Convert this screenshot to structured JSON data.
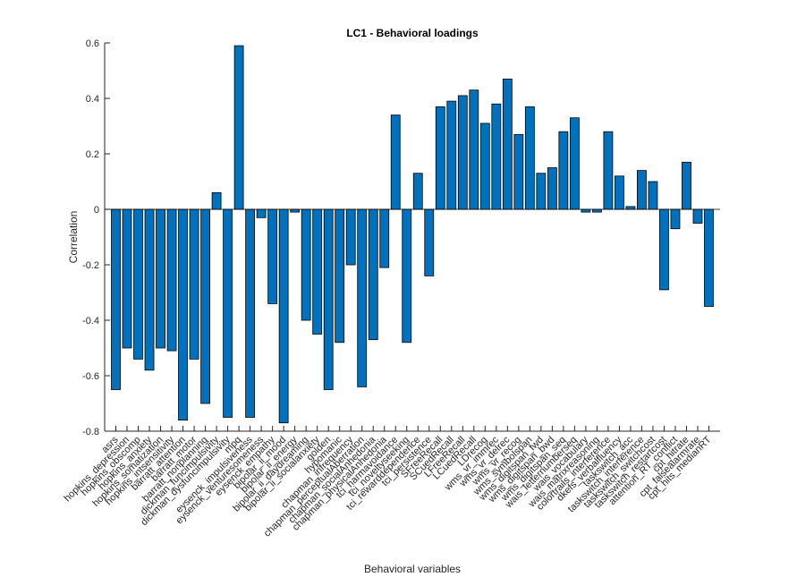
{
  "chart_data": {
    "type": "bar",
    "title": "LC1 - Behavioral loadings",
    "x_label": "Behavioral variables",
    "y_label": "Correlation",
    "categories": [
      "asrs",
      "hopkins_depression",
      "hopkins_obscomp",
      "hopkins_anxiety",
      "hopkins_somatization",
      "hopkins_intsensitivity",
      "barratt_attention",
      "barratt_motor",
      "barratt_nonplanning",
      "dickman_funcimpulsivity",
      "dickman_dysfuncimpulsivity",
      "mpq",
      "eysenck_impulsiveness",
      "eysenck_venturesomeness",
      "eysenck_empathy",
      "bipolar_ii_mood",
      "bipolar_ii_energy",
      "bipolar_ii_daydreaming",
      "bipolar_ii_socialanxiety",
      "golden",
      "hypomanic",
      "chapman_infrequency",
      "chapman_perceptualAberration",
      "chapman_socialAnhedonia",
      "chapman_physicalAnhedonia",
      "tci_harmavoidance",
      "tci_noveltyseeking",
      "tci_rewarddependence",
      "tci_persistence",
      "SFreeRecall",
      "SCuedRecall",
      "LFreeRecall",
      "LCuedRecall",
      "LDrecog",
      "wms_vr_immrec",
      "wms_vr_delrec",
      "wms_vr_recog",
      "wms_symbolspan",
      "wms_digitspan_fwd",
      "wms_digitspan_bwd",
      "wms_digitspan_seq",
      "wais_letternumberseq",
      "wais_vocabulary",
      "wais_matrixreasoning",
      "colortrails_interference",
      "dkefs_verbalfluency",
      "taskswitch_acc",
      "taskswitch_interference",
      "taskswitch_switchcost",
      "taskswitch_restartcost",
      "attention_RT_conflict",
      "cpt_hitrate",
      "cpt_falsealarmrate",
      "cpt_hits_medianRT"
    ],
    "values": [
      -0.65,
      -0.5,
      -0.54,
      -0.58,
      -0.5,
      -0.51,
      -0.76,
      -0.54,
      -0.7,
      0.06,
      -0.75,
      0.59,
      -0.75,
      -0.03,
      -0.34,
      -0.77,
      -0.01,
      -0.4,
      -0.45,
      -0.65,
      -0.48,
      -0.2,
      -0.64,
      -0.47,
      -0.21,
      0.34,
      -0.48,
      0.13,
      -0.24,
      0.37,
      0.39,
      0.41,
      0.43,
      0.31,
      0.38,
      0.47,
      0.27,
      0.37,
      0.13,
      0.15,
      0.28,
      0.33,
      -0.01,
      -0.01,
      0.28,
      0.12,
      0.01,
      0.14,
      0.1,
      -0.29,
      -0.07,
      0.17,
      -0.05,
      -0.35
    ],
    "color": "#0072BD",
    "ylim": [
      -0.8,
      0.6
    ],
    "yticks": [
      -0.8,
      -0.6,
      -0.4,
      -0.2,
      0,
      0.2,
      0.4,
      0.6
    ]
  }
}
